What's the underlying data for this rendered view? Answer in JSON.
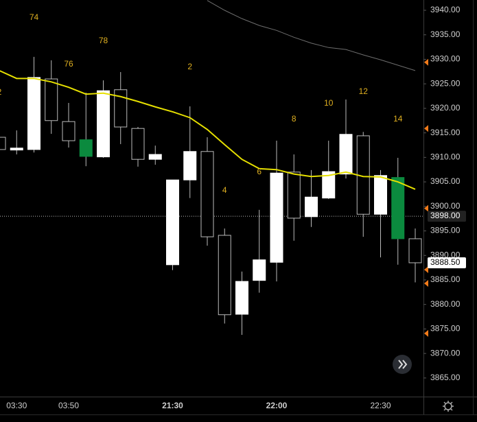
{
  "chart_data": {
    "type": "candlestick",
    "categories": [
      null,
      "03:30",
      null,
      null,
      "03:50",
      null,
      null,
      null,
      null,
      null,
      "21:30",
      null,
      null,
      null,
      null,
      null,
      "22:00",
      null,
      null,
      null,
      null,
      null,
      "22:30",
      null,
      null
    ],
    "open": [
      3914.1,
      3911.5,
      3911.6,
      3926.0,
      3917.3,
      3913.6,
      3910.1,
      3923.8,
      3915.9,
      3909.6,
      3888.1,
      3905.4,
      3911.2,
      3894.1,
      3878.0,
      3884.9,
      3888.6,
      3907.0,
      3897.9,
      3901.7,
      3906.6,
      3914.4,
      3898.4,
      3905.9,
      3893.4
    ],
    "high": [
      3914.8,
      3915.5,
      3930.5,
      3929.8,
      3921.1,
      3923.2,
      3925.7,
      3927.4,
      3916.2,
      3912.4,
      3905.4,
      3920.4,
      3914.1,
      3895.5,
      3886.7,
      3899.3,
      3913.4,
      3910.6,
      3907.4,
      3913.4,
      3921.8,
      3915.2,
      3907.4,
      3909.9,
      3895.5
    ],
    "low": [
      3911.0,
      3910.6,
      3911.0,
      3914.8,
      3912.0,
      3908.2,
      3909.9,
      3912.7,
      3908.1,
      3908.5,
      3887.0,
      3901.7,
      3892.0,
      3876.1,
      3873.8,
      3882.4,
      3884.7,
      3893.0,
      3895.8,
      3901.5,
      3905.7,
      3893.8,
      3889.6,
      3888.1,
      3884.5
    ],
    "close": [
      3911.6,
      3911.9,
      3926.3,
      3917.5,
      3913.4,
      3910.2,
      3923.6,
      3916.2,
      3909.6,
      3910.6,
      3905.4,
      3911.2,
      3893.8,
      3877.9,
      3884.7,
      3889.1,
      3906.8,
      3897.6,
      3901.9,
      3907.1,
      3914.7,
      3898.4,
      3906.3,
      3893.4,
      3888.5
    ],
    "candle_colors": [
      "#000000",
      "#ffffff",
      "#ffffff",
      "#000000",
      "#000000",
      "#0b8a3e",
      "#ffffff",
      "#000000",
      "#000000",
      "#ffffff",
      "#ffffff",
      "#ffffff",
      "#000000",
      "#000000",
      "#ffffff",
      "#ffffff",
      "#ffffff",
      "#000000",
      "#ffffff",
      "#ffffff",
      "#ffffff",
      "#000000",
      "#ffffff",
      "#0b8a3e",
      "#000000"
    ],
    "lines": [
      {
        "color": "#e6e000",
        "values": [
          3927.7,
          3926.1,
          3926.1,
          3925.4,
          3924.3,
          3922.9,
          3923.1,
          3922.4,
          3921.4,
          3920.3,
          3919.3,
          3918.1,
          3915.7,
          3912.6,
          3909.6,
          3907.7,
          3907.5,
          3906.6,
          3906.1,
          3906.3,
          3907.0,
          3906.1,
          3906.0,
          3905.0,
          3903.5
        ]
      },
      {
        "color": "#6e6e6e",
        "values": [
          null,
          null,
          null,
          null,
          null,
          null,
          null,
          null,
          null,
          null,
          null,
          null,
          3942.0,
          3940.0,
          3938.3,
          3936.9,
          3935.9,
          3934.5,
          3933.3,
          3932.4,
          3932.0,
          3930.9,
          3929.9,
          3928.8,
          3927.7
        ]
      }
    ],
    "bar_labels": [
      "2",
      null,
      "74",
      null,
      "76",
      null,
      "78",
      null,
      null,
      null,
      null,
      "2",
      null,
      "4",
      null,
      "6",
      null,
      "8",
      null,
      "10",
      null,
      "12",
      null,
      "14",
      null
    ],
    "ylim": [
      3861.2,
      3942.1
    ],
    "yticks": [
      {
        "value": 3865,
        "label": "3865.00"
      },
      {
        "value": 3870,
        "label": "3870.00"
      },
      {
        "value": 3875,
        "label": "3875.00"
      },
      {
        "value": 3880,
        "label": "3880.00"
      },
      {
        "value": 3885,
        "label": "3885.00"
      },
      {
        "value": 3890,
        "label": "3890.00"
      },
      {
        "value": 3895,
        "label": "3895.00"
      },
      {
        "value": 3900,
        "label": "3900.00"
      },
      {
        "value": 3905,
        "label": "3905.00"
      },
      {
        "value": 3910,
        "label": "3910.00"
      },
      {
        "value": 3915,
        "label": "3915.00"
      },
      {
        "value": 3920,
        "label": "3920.00"
      },
      {
        "value": 3925,
        "label": "3925.00"
      },
      {
        "value": 3930,
        "label": "3930.00"
      },
      {
        "value": 3935,
        "label": "3935.00"
      },
      {
        "value": 3940,
        "label": "3940.00"
      }
    ],
    "crosshair": {
      "value": 3898,
      "label": "3898.00"
    },
    "last_price": {
      "value": 3888.5,
      "label": "3888.50"
    },
    "markers": [
      3929.4,
      3915.9,
      3899.6,
      3887.1,
      3884.3,
      3874.1
    ],
    "marker_color": "#f07a1a",
    "label_color": "#e0b020"
  }
}
